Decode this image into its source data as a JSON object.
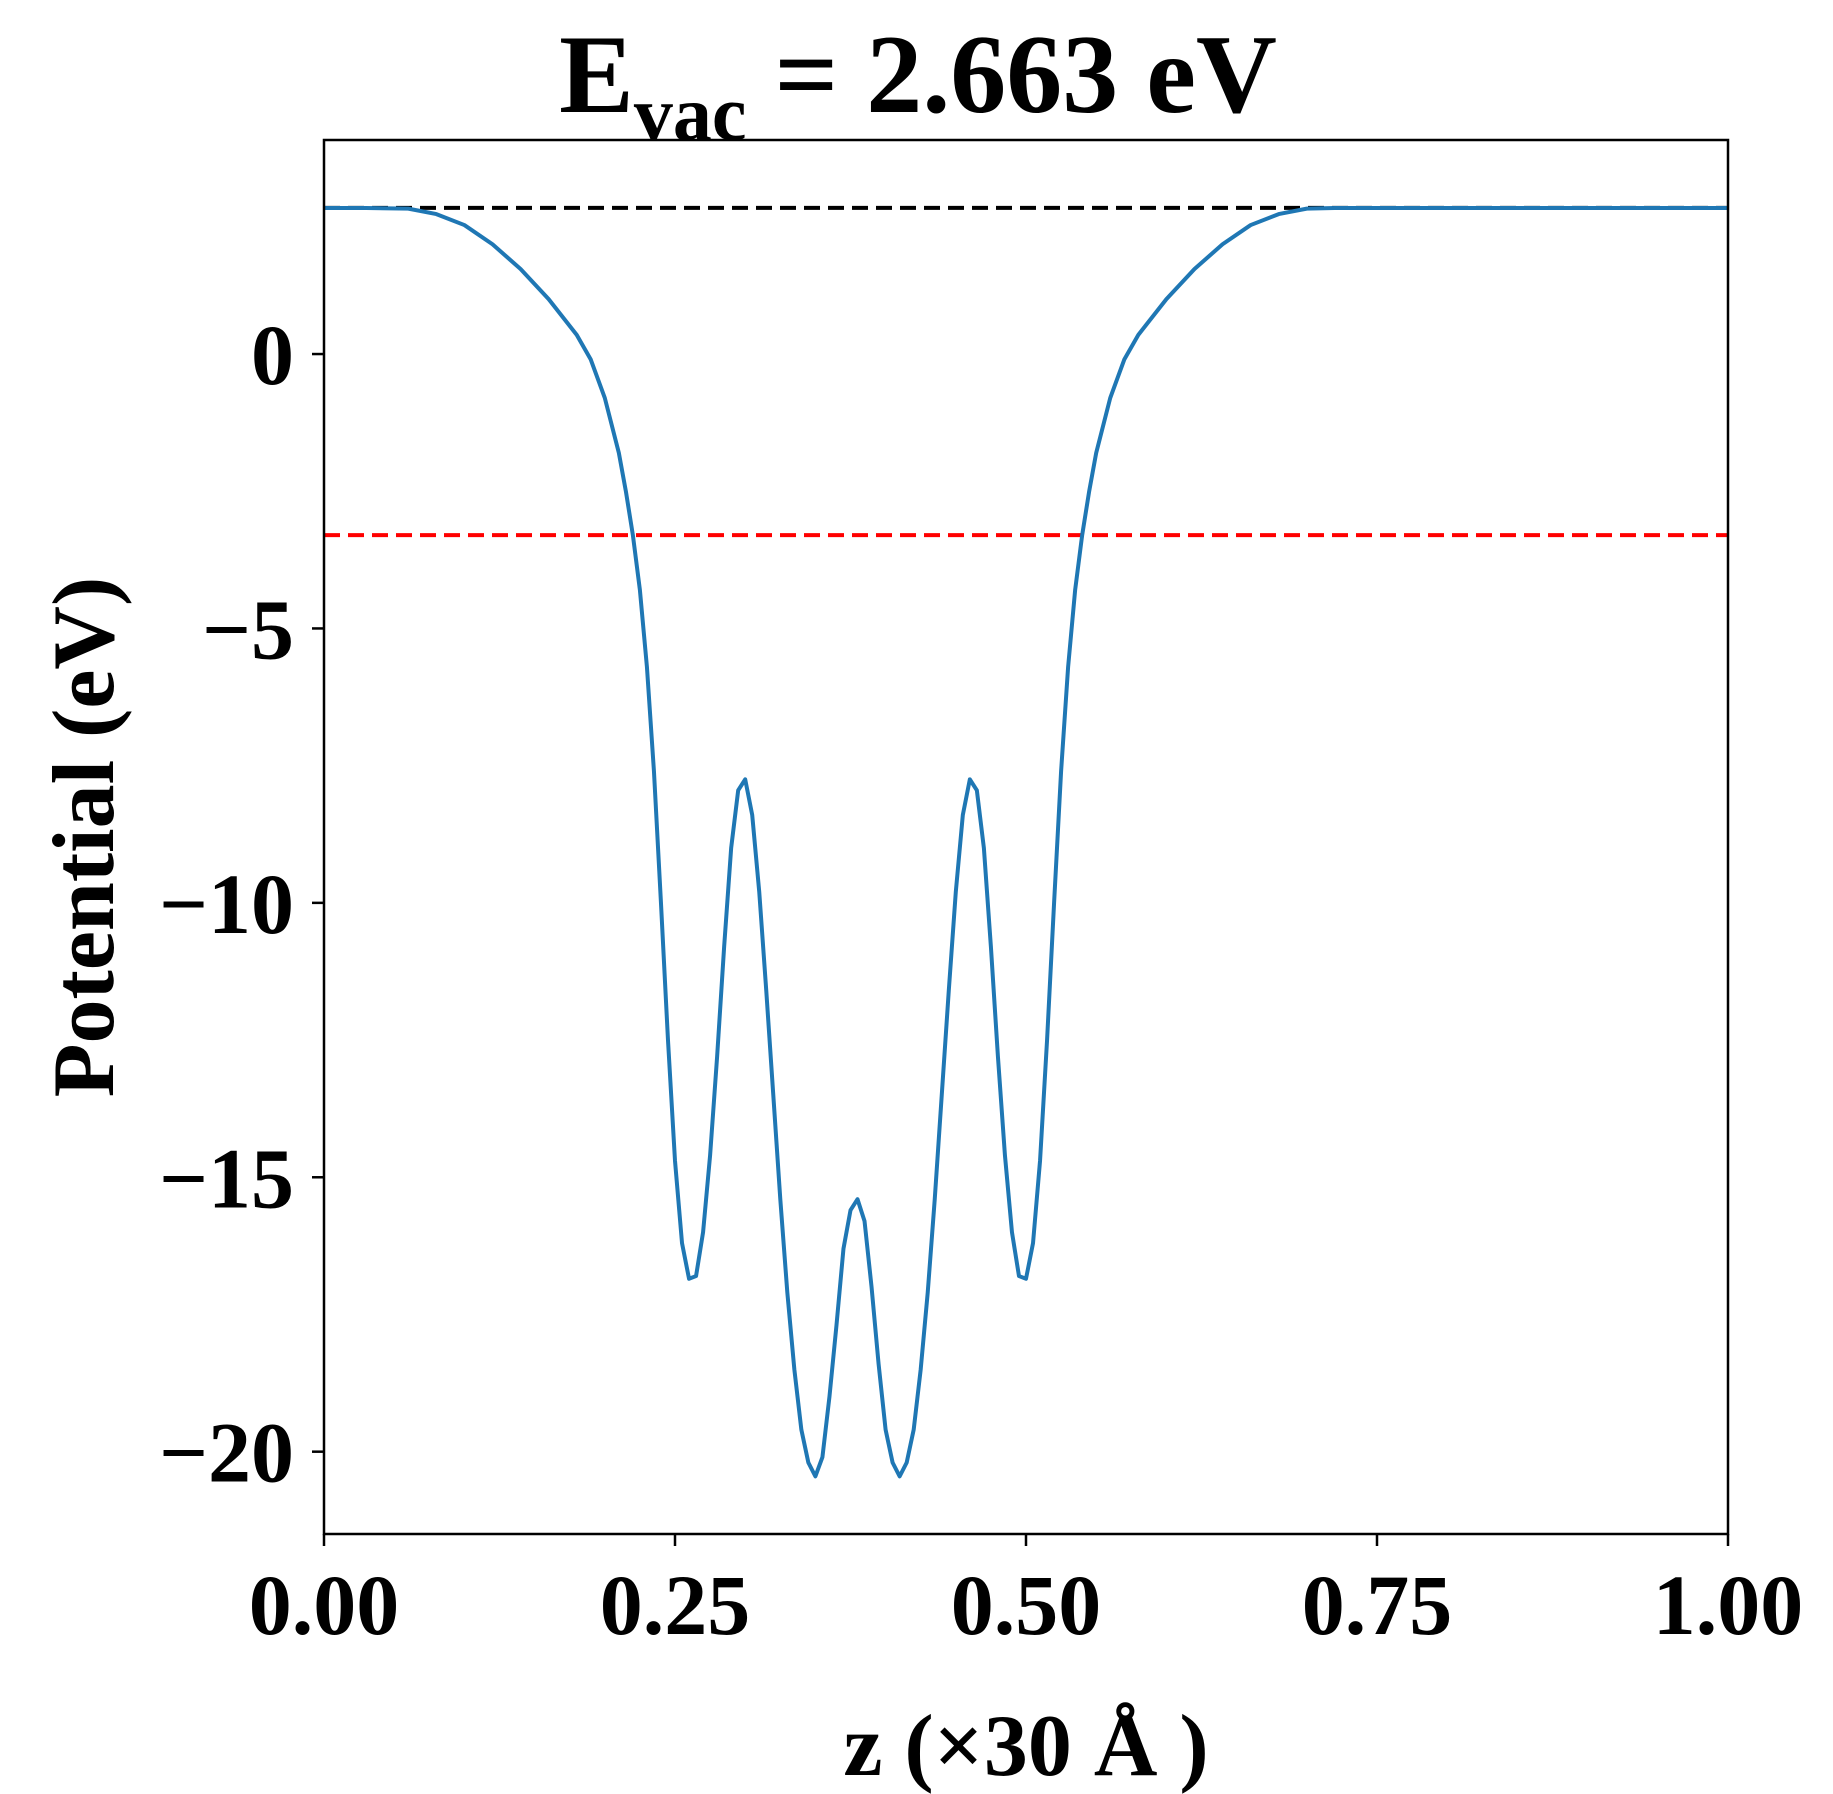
{
  "chart_data": {
    "type": "line",
    "title": {
      "main": "E",
      "subscript": "vac",
      "rest": " = 2.663 eV"
    },
    "xlabel": "z (×30 Å )",
    "ylabel": "Potential (eV)",
    "xlim": [
      0.0,
      1.0
    ],
    "ylim": [
      -21.5,
      3.9
    ],
    "xticks": [
      0.0,
      0.25,
      0.5,
      0.75,
      1.0
    ],
    "xtick_labels": [
      "0.00",
      "0.25",
      "0.50",
      "0.75",
      "1.00"
    ],
    "yticks": [
      0,
      -5,
      -10,
      -15,
      -20
    ],
    "ytick_labels": [
      "0",
      "−5",
      "−10",
      "−15",
      "−20"
    ],
    "grid": false,
    "reference_lines": [
      {
        "y": 2.663,
        "color": "#000000",
        "style": "dashed"
      },
      {
        "y": -3.3,
        "color": "#ff0000",
        "style": "dashed"
      }
    ],
    "series": [
      {
        "color": "#1f77b4",
        "x": [
          0.0,
          0.03,
          0.06,
          0.08,
          0.1,
          0.12,
          0.14,
          0.16,
          0.18,
          0.19,
          0.2,
          0.21,
          0.215,
          0.22,
          0.225,
          0.23,
          0.235,
          0.24,
          0.245,
          0.25,
          0.255,
          0.26,
          0.265,
          0.27,
          0.275,
          0.28,
          0.285,
          0.29,
          0.295,
          0.3,
          0.305,
          0.31,
          0.315,
          0.32,
          0.325,
          0.33,
          0.335,
          0.34,
          0.345,
          0.35,
          0.355,
          0.36,
          0.365,
          0.37,
          0.375,
          0.38,
          0.385,
          0.39,
          0.395,
          0.4,
          0.405,
          0.41,
          0.415,
          0.42,
          0.425,
          0.43,
          0.435,
          0.44,
          0.445,
          0.45,
          0.455,
          0.46,
          0.465,
          0.47,
          0.475,
          0.48,
          0.485,
          0.49,
          0.495,
          0.5,
          0.505,
          0.51,
          0.515,
          0.52,
          0.525,
          0.53,
          0.535,
          0.54,
          0.545,
          0.55,
          0.56,
          0.57,
          0.58,
          0.6,
          0.62,
          0.64,
          0.66,
          0.68,
          0.7,
          0.72,
          0.75,
          0.8,
          0.85,
          0.9,
          0.95,
          1.0
        ],
        "y": [
          2.66,
          2.66,
          2.65,
          2.55,
          2.35,
          2.0,
          1.55,
          1.0,
          0.35,
          -0.1,
          -0.8,
          -1.8,
          -2.5,
          -3.3,
          -4.3,
          -5.7,
          -7.6,
          -10.0,
          -12.5,
          -14.7,
          -16.2,
          -16.85,
          -16.8,
          -16.0,
          -14.6,
          -12.8,
          -10.8,
          -9.0,
          -7.95,
          -7.75,
          -8.4,
          -9.8,
          -11.6,
          -13.5,
          -15.4,
          -17.1,
          -18.5,
          -19.6,
          -20.2,
          -20.45,
          -20.1,
          -19.0,
          -17.7,
          -16.3,
          -15.6,
          -15.4,
          -15.8,
          -17.0,
          -18.4,
          -19.6,
          -20.2,
          -20.45,
          -20.2,
          -19.6,
          -18.5,
          -17.1,
          -15.4,
          -13.5,
          -11.6,
          -9.8,
          -8.4,
          -7.75,
          -7.95,
          -9.0,
          -10.8,
          -12.8,
          -14.6,
          -16.0,
          -16.8,
          -16.85,
          -16.2,
          -14.7,
          -12.5,
          -10.0,
          -7.6,
          -5.7,
          -4.3,
          -3.3,
          -2.5,
          -1.8,
          -0.8,
          -0.1,
          0.35,
          1.0,
          1.55,
          2.0,
          2.35,
          2.55,
          2.65,
          2.66,
          2.66,
          2.66,
          2.66,
          2.66,
          2.66,
          2.66
        ]
      }
    ]
  }
}
